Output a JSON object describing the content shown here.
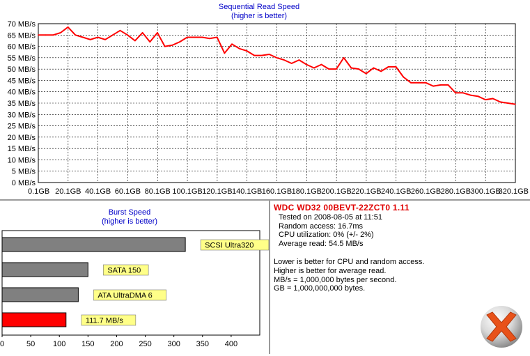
{
  "sequential": {
    "chart_data": {
      "type": "line",
      "title": "Sequential Read Speed",
      "subtitle": "(higher is better)",
      "y_ticks": [
        "0 MB/s",
        "5 MB/s",
        "10 MB/s",
        "15 MB/s",
        "20 MB/s",
        "25 MB/s",
        "30 MB/s",
        "35 MB/s",
        "40 MB/s",
        "45 MB/s",
        "50 MB/s",
        "55 MB/s",
        "60 MB/s",
        "65 MB/s",
        "70 MB/s"
      ],
      "x_ticks": [
        "0.1GB",
        "20.1GB",
        "40.1GB",
        "60.1GB",
        "80.1GB",
        "100.1GB",
        "120.1GB",
        "140.1GB",
        "160.1GB",
        "180.1GB",
        "200.1GB",
        "220.1GB",
        "240.1GB",
        "260.1GB",
        "280.1GB",
        "300.1GB",
        "320.1GB"
      ],
      "ylim": [
        0,
        70
      ],
      "xlim": [
        0.1,
        320.1
      ],
      "grid": true,
      "series": [
        {
          "color": "#ff0000",
          "x": [
            0.1,
            5,
            10,
            15,
            20,
            25,
            30,
            35,
            40,
            45,
            50,
            55,
            60,
            65,
            70,
            75,
            80,
            85,
            90,
            95,
            100,
            105,
            110,
            115,
            120,
            125,
            130,
            135,
            140,
            145,
            150,
            155,
            160,
            165,
            170,
            175,
            180,
            185,
            190,
            195,
            200,
            205,
            210,
            215,
            220,
            225,
            230,
            235,
            240,
            245,
            250,
            255,
            260,
            265,
            270,
            275,
            280,
            285,
            290,
            295,
            300,
            305,
            310,
            315,
            320
          ],
          "y": [
            65,
            65,
            65,
            66,
            68.5,
            65,
            64,
            63,
            64,
            63,
            65,
            67,
            65,
            62.5,
            66,
            62,
            66,
            60,
            60.5,
            62,
            64,
            64,
            64,
            63.5,
            64,
            57,
            61,
            59,
            58,
            56,
            56,
            56.5,
            55,
            54,
            52.5,
            54,
            52,
            50.5,
            52,
            50,
            50,
            55,
            50.5,
            50,
            48,
            50.5,
            49,
            51,
            51,
            46.5,
            44,
            44,
            44,
            42.5,
            43,
            43,
            39.5,
            39.5,
            38.5,
            38,
            36.5,
            37,
            35.5,
            35,
            34.5
          ]
        }
      ]
    }
  },
  "burst": {
    "chart_data": {
      "type": "bar",
      "orientation": "horizontal",
      "title": "Burst Speed",
      "subtitle": "(higher is better)",
      "categories": [
        "SCSI Ultra320",
        "SATA 150",
        "ATA UltraDMA 6",
        "111.7 MB/s"
      ],
      "values": [
        320,
        150,
        133,
        111.7
      ],
      "bar_colors": [
        "#808080",
        "#808080",
        "#808080",
        "#ff0000"
      ],
      "label_color": "#ffff88",
      "x_ticks": [
        "0",
        "50",
        "100",
        "150",
        "200",
        "250",
        "300",
        "350",
        "400"
      ],
      "xlim": [
        0,
        450
      ]
    }
  },
  "info": {
    "title": "WDC WD32 00BEVT-22ZCT0 1.11",
    "lines": [
      "Tested on 2008-08-05 at 11:51",
      "Random access: 16.7ms",
      "CPU utilization: 0% (+/- 2%)",
      "Average read: 54.5 MB/s"
    ],
    "notes": [
      "Lower is better for CPU and random access.",
      "Higher is better for average read.",
      "MB/s = 1,000,000 bytes per second.",
      "GB = 1,000,000,000 bytes."
    ]
  },
  "colors": {
    "title_blue": "#0000c8",
    "line_red": "#ff0000",
    "info_red": "#e00000",
    "bar_gray": "#808080",
    "label_yellow": "#ffff88"
  },
  "logo": {
    "icon": "x-ball-logo-icon"
  }
}
